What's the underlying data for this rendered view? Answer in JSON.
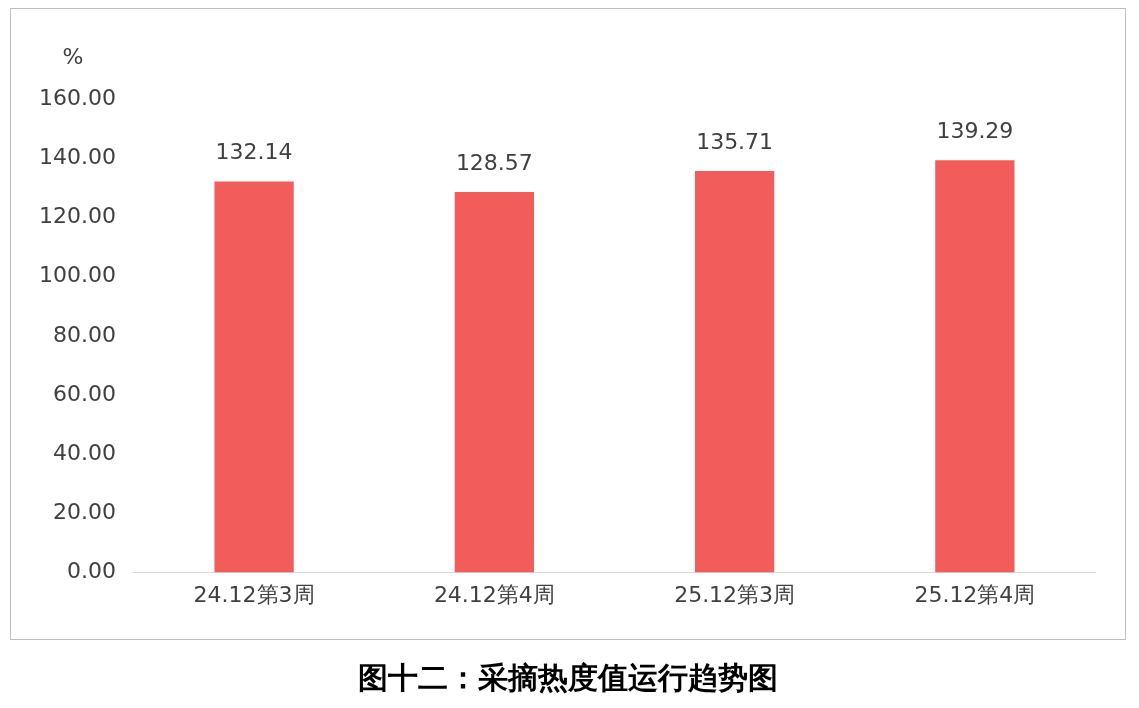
{
  "chart_data": {
    "type": "bar",
    "title": "图十二：采摘热度值运行趋势图",
    "ylabel": "%",
    "categories": [
      "24.12第3周",
      "24.12第4周",
      "25.12第3周",
      "25.12第4周"
    ],
    "values": [
      132.14,
      128.57,
      135.71,
      139.29
    ],
    "color": "#f25c5a",
    "ylim": [
      0,
      160
    ],
    "yticks": [
      {
        "value": 0,
        "label": "0.00"
      },
      {
        "value": 20,
        "label": "20.00"
      },
      {
        "value": 40,
        "label": "40.00"
      },
      {
        "value": 60,
        "label": "60.00"
      },
      {
        "value": 80,
        "label": "80.00"
      },
      {
        "value": 100,
        "label": "100.00"
      },
      {
        "value": 120,
        "label": "120.00"
      },
      {
        "value": 140,
        "label": "140.00"
      },
      {
        "value": 160,
        "label": "160.00"
      }
    ],
    "grid": false,
    "legend": false,
    "data_labels": true
  }
}
